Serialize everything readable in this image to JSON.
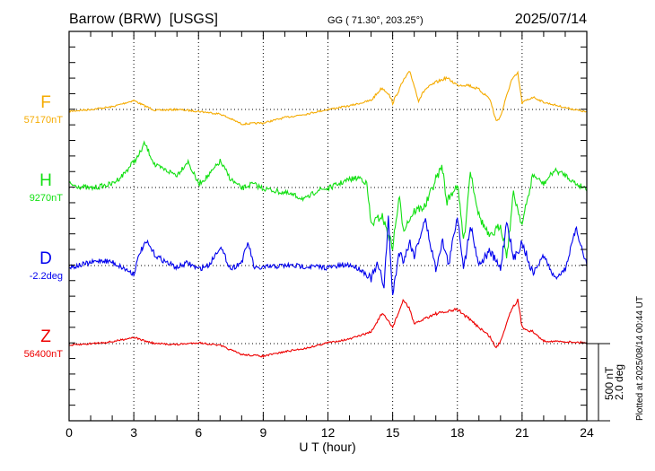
{
  "header": {
    "station": "Barrow (BRW)  [USGS]",
    "coords": "GG ( 71.30°, 203.25°)",
    "date": "2025/07/14"
  },
  "footer": {
    "plotted": "Plotted at 2025/08/14 00:44 UT"
  },
  "scale": {
    "nt": "500 nT",
    "deg": "2.0 deg",
    "nt_value": 500,
    "deg_value": 2.0
  },
  "chart_data": {
    "type": "line",
    "title": "Barrow (BRW) [USGS] 2025/07/14",
    "xlabel": "U T (hour)",
    "xlim": [
      0,
      24
    ],
    "xticks": [
      "0",
      "3",
      "6",
      "9",
      "12",
      "15",
      "18",
      "21",
      "24"
    ],
    "grid": true,
    "series": [
      {
        "name": "F",
        "baseline_label": "57170nT",
        "baseline": 57170,
        "unit": "nT",
        "color": "#f5ab00",
        "x": [
          0,
          1,
          2,
          3,
          3.5,
          4,
          5,
          6,
          7,
          8,
          9,
          10,
          11,
          12,
          13,
          14,
          14.5,
          14.8,
          15,
          15.5,
          15.8,
          16.2,
          16.5,
          17,
          17.5,
          18,
          18.5,
          19,
          19.5,
          19.8,
          20,
          20.5,
          20.8,
          21,
          21.5,
          22,
          23,
          24
        ],
        "offset": [
          -12,
          0,
          17,
          58,
          23,
          -6,
          0,
          -12,
          -29,
          -93,
          -87,
          -52,
          -29,
          0,
          23,
          58,
          139,
          104,
          41,
          186,
          244,
          58,
          128,
          174,
          203,
          157,
          157,
          128,
          70,
          -75,
          -46,
          186,
          232,
          41,
          81,
          46,
          12,
          -17
        ]
      },
      {
        "name": "H",
        "baseline_label": "9270nT",
        "baseline": 9270,
        "unit": "nT",
        "color": "#11e011",
        "x": [
          0,
          0.5,
          1,
          2,
          2.5,
          3,
          3.2,
          3.5,
          4,
          4.5,
          5,
          5.5,
          6,
          6.5,
          7,
          7.5,
          8,
          8.5,
          9,
          10,
          11,
          11.5,
          12,
          13,
          13.5,
          13.8,
          14,
          14.5,
          15,
          15.3,
          15.5,
          16,
          16.5,
          17,
          17.3,
          17.5,
          18,
          18.3,
          18.6,
          19,
          19.5,
          20,
          20.3,
          20.6,
          21,
          21.5,
          22,
          22.5,
          23,
          23.5,
          24
        ],
        "offset": [
          23,
          6,
          -6,
          23,
          81,
          168,
          197,
          284,
          139,
          110,
          81,
          168,
          23,
          81,
          168,
          52,
          -6,
          23,
          -6,
          -35,
          -75,
          -17,
          -6,
          52,
          64,
          23,
          -238,
          -180,
          -383,
          -64,
          -267,
          -151,
          -122,
          52,
          139,
          -93,
          23,
          -354,
          110,
          -180,
          -325,
          -238,
          -441,
          -35,
          -238,
          81,
          23,
          110,
          81,
          23,
          -6
        ]
      },
      {
        "name": "D",
        "baseline_label": "-2.2deg",
        "baseline": -2.2,
        "unit": "deg",
        "color": "#0000ee",
        "x": [
          0,
          1,
          1.5,
          2,
          3,
          3.3,
          3.6,
          4,
          4.5,
          5,
          5.5,
          6,
          6.5,
          7,
          7.5,
          8,
          8.3,
          8.6,
          9,
          10,
          11,
          12,
          13,
          13.5,
          14,
          14.3,
          14.6,
          14.8,
          15,
          15.3,
          15.5,
          15.8,
          16,
          16.5,
          17,
          17.3,
          17.6,
          18,
          18.3,
          18.6,
          19,
          19.5,
          20,
          20.3,
          20.6,
          21,
          21.5,
          22,
          22.5,
          23,
          23.5,
          24
        ],
        "offset": [
          -0.05,
          0.07,
          0.14,
          0.09,
          -0.21,
          0.37,
          0.6,
          0.26,
          0.09,
          -0.05,
          0.07,
          -0.09,
          0.02,
          0.49,
          -0.09,
          0.09,
          0.6,
          -0.09,
          -0.05,
          0,
          -0.02,
          -0.05,
          0.02,
          -0.09,
          -0.33,
          0.02,
          -0.51,
          1.19,
          -0.79,
          0.37,
          0.14,
          0.6,
          0.26,
          1.19,
          -0.09,
          0.65,
          0.02,
          1.3,
          -0.09,
          1.07,
          0.02,
          0.37,
          -0.09,
          1.19,
          0.14,
          0.6,
          -0.21,
          0.26,
          -0.33,
          -0.09,
          0.95,
          0.02
        ]
      },
      {
        "name": "Z",
        "baseline_label": "56400nT",
        "baseline": 56400,
        "unit": "nT",
        "color": "#ee0000",
        "x": [
          0,
          1,
          2,
          3,
          3.5,
          4,
          5,
          6,
          7,
          8,
          9,
          10,
          11,
          12,
          13,
          14,
          14.5,
          14.8,
          15,
          15.5,
          15.8,
          16,
          16.5,
          17,
          17.5,
          18,
          18.5,
          19,
          19.5,
          19.8,
          20,
          20.5,
          20.8,
          21,
          21.5,
          22,
          23,
          24
        ],
        "offset": [
          -12,
          0,
          12,
          41,
          17,
          0,
          -6,
          6,
          -12,
          -70,
          -81,
          -52,
          -29,
          6,
          29,
          75,
          192,
          145,
          105,
          279,
          221,
          122,
          163,
          192,
          203,
          221,
          163,
          105,
          46,
          -29,
          17,
          221,
          279,
          105,
          75,
          17,
          12,
          6
        ]
      }
    ]
  }
}
